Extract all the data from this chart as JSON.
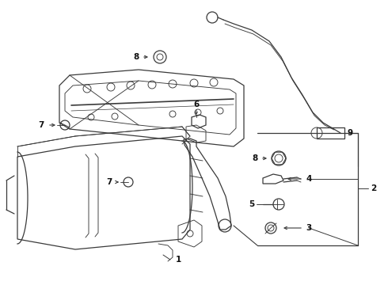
{
  "bg_color": "#ffffff",
  "line_color": "#3a3a3a",
  "text_color": "#111111",
  "figsize": [
    4.9,
    3.6
  ],
  "dpi": 100,
  "font_size": 7.5,
  "lw_main": 0.9,
  "lw_detail": 0.65
}
